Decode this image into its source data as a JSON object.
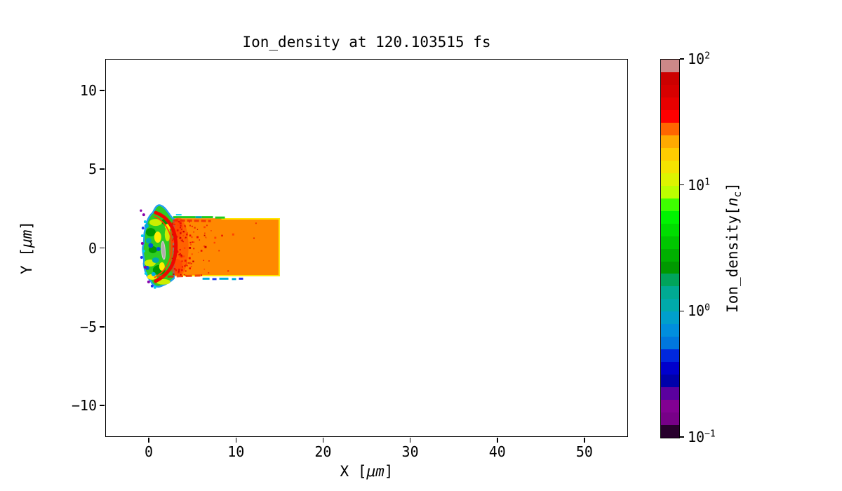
{
  "figure": {
    "background": "#ffffff"
  },
  "chart_data": {
    "type": "heatmap",
    "title": "Ion_density at 120.103515 fs",
    "xlabel": {
      "prefix": "X [",
      "italic": "μm",
      "suffix": "]"
    },
    "ylabel": {
      "prefix": "Y [",
      "italic": "μm",
      "suffix": "]"
    },
    "xlim": [
      -5,
      55
    ],
    "ylim": [
      -12,
      12
    ],
    "grid": false,
    "x_ticks": {
      "values": [
        0,
        10,
        20,
        30,
        40,
        50
      ],
      "labels": [
        "0",
        "10",
        "20",
        "30",
        "40",
        "50"
      ]
    },
    "y_ticks": {
      "values": [
        10,
        5,
        0,
        -5,
        -10
      ],
      "labels": [
        "10",
        "5",
        "0",
        "−5",
        "−10"
      ]
    },
    "colorbar": {
      "label": {
        "prefix": "Ion_density[",
        "italic": "n",
        "sub": "c",
        "suffix": "]"
      },
      "scale": "log",
      "vmin": 0.1,
      "vmax": 100,
      "ticks": [
        {
          "value": 100,
          "base": "10",
          "exp": "2"
        },
        {
          "value": 10,
          "base": "10",
          "exp": "1"
        },
        {
          "value": 1,
          "base": "10",
          "exp": "0"
        },
        {
          "value": 0.1,
          "base": "10",
          "exp": "−1"
        }
      ],
      "colormap": "nipy_spectral, discrete (10 bands per decade)",
      "band_colors_bottom_to_top": [
        "#28002d",
        "#770088",
        "#820093",
        "#5b009f",
        "#0000aa",
        "#0000cc",
        "#0028dd",
        "#0077dd",
        "#008edd",
        "#009fcc",
        "#00aaaa",
        "#00aa93",
        "#00a45b",
        "#009900",
        "#00b000",
        "#00c600",
        "#00dd00",
        "#00f400",
        "#3eff00",
        "#bbff00",
        "#ddf400",
        "#f4e300",
        "#ffcc00",
        "#ffaa00",
        "#ff6600",
        "#ff0000",
        "#e80000",
        "#d70000",
        "#cc0000",
        "#cc8888"
      ]
    },
    "features": {
      "target_slab": {
        "x_um": [
          0,
          15
        ],
        "y_um": [
          -1.8,
          1.9
        ],
        "density_nc": 20,
        "color": "#ff8800",
        "edge_color": "#ffe600",
        "description": "uniform plasma slab ~20 nc"
      },
      "interaction_front": {
        "x_um": [
          -0.7,
          2.6
        ],
        "y_um": [
          -2.3,
          2.4
        ],
        "body_color": "#2ecc22",
        "halo_color": "#22a0ee",
        "description": "turbulent irradiated front surface, mixed 1–10 nc with low-density cyan/blue/purple halo"
      },
      "shock_arc": {
        "x_um": [
          0.3,
          3.1
        ],
        "color": "#ee0800",
        "description": "red crescent of compressed plasma ~30–60 nc arcing across the front"
      },
      "dense_core": {
        "x_um": [
          1.5,
          1.8
        ],
        "y_um": [
          -0.6,
          0.6
        ],
        "color": "#b3acac",
        "description": "gray sliver exceeding 100 nc at arc center"
      },
      "speckles": {
        "x_um": [
          2.5,
          12
        ],
        "color": "#ee1100",
        "description": "red filaments penetrating the slab, density of dots decays with depth"
      },
      "surface_fringe_top": {
        "y_um": 1.9,
        "x_um": [
          2.3,
          8.7
        ],
        "colors": [
          "#1ecc1e",
          "#00aaaa"
        ]
      },
      "surface_fringe_bottom": {
        "y_um": -2.0,
        "x_um": [
          6.2,
          11.0
        ],
        "colors": [
          "#00aadd",
          "#2244ee"
        ]
      }
    }
  }
}
